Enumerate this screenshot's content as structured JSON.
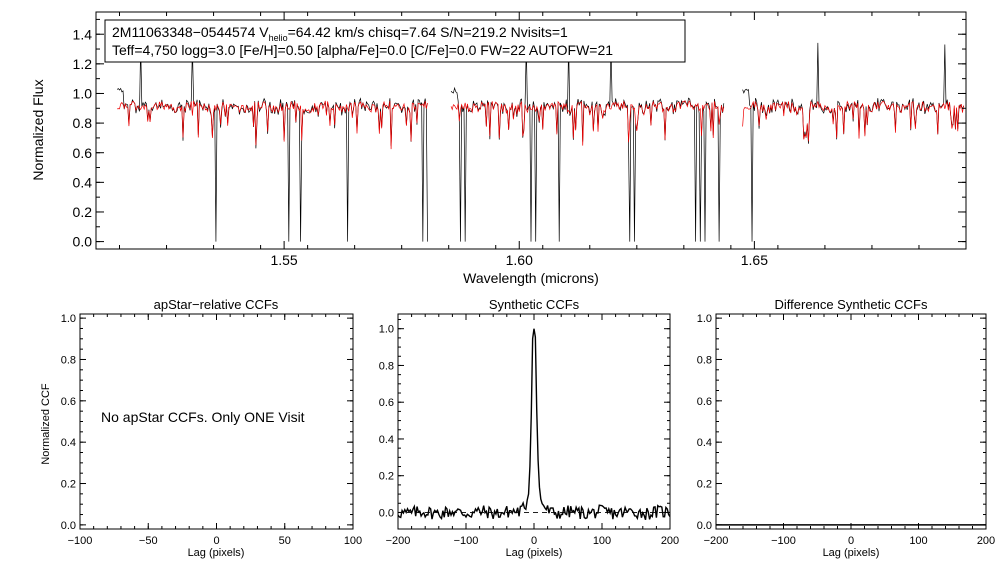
{
  "chart_data": [
    {
      "type": "line",
      "panel": "spectrum",
      "info_box": {
        "line1_prefix": "2M11063348−0544574  V",
        "line1_sub": "helio",
        "line1_suffix": "=64.42 km/s  chisq=7.64  S/N=219.2  Nvisits=1",
        "line2": "Teff=4,750 logg=3.0 [Fe/H]=0.50 [alpha/Fe]=0.0 [C/Fe]=0.0 FW=22 AUTOFW=21"
      },
      "xlabel": "Wavelength (microns)",
      "ylabel": "Normalized Flux",
      "xlim": [
        1.51,
        1.695
      ],
      "ylim": [
        -0.05,
        1.55
      ],
      "xticks": [
        1.55,
        1.6,
        1.65
      ],
      "xtick_labels": [
        "1.55",
        "1.60",
        "1.65"
      ],
      "yticks": [
        0.0,
        0.2,
        0.4,
        0.6,
        0.8,
        1.0,
        1.2,
        1.4
      ],
      "ytick_labels": [
        "0.0",
        "0.2",
        "0.4",
        "0.6",
        "0.8",
        "1.0",
        "1.2",
        "1.4"
      ],
      "chip_ranges": [
        [
          1.5145,
          1.5805
        ],
        [
          1.5855,
          1.6435
        ],
        [
          1.6475,
          1.6945
        ]
      ],
      "series": [
        {
          "name": "observed spectrum",
          "color": "#000000"
        },
        {
          "name": "best-fit model",
          "color": "#ee0000"
        }
      ],
      "spikes_down": [
        1.5125,
        1.5355,
        1.551,
        1.5535,
        1.5635,
        1.5795,
        1.5805,
        1.5875,
        1.5885,
        1.6025,
        1.6035,
        1.6085,
        1.6235,
        1.6245,
        1.6375,
        1.6385,
        1.6395,
        1.6425,
        1.6495,
        1.6905
      ],
      "spikes_up": [
        1.5195,
        1.5305,
        1.6015,
        1.6105,
        1.6195,
        1.6635,
        1.6905
      ]
    },
    {
      "type": "line",
      "panel": "apstar",
      "title": "apStar−relative CCFs",
      "xlabel": "Lag (pixels)",
      "ylabel": "Normalized CCF",
      "xlim": [
        -100,
        100
      ],
      "ylim": [
        -0.02,
        1.02
      ],
      "xticks": [
        -100,
        -50,
        0,
        50,
        100
      ],
      "xtick_labels": [
        "−100",
        "−50",
        "0",
        "50",
        "100"
      ],
      "yticks": [
        0.0,
        0.2,
        0.4,
        0.6,
        0.8,
        1.0
      ],
      "ytick_labels": [
        "0.0",
        "0.2",
        "0.4",
        "0.6",
        "0.8",
        "1.0"
      ],
      "annotation": "No apStar CCFs.  Only ONE Visit"
    },
    {
      "type": "line",
      "panel": "synthetic",
      "title": "Synthetic CCFs",
      "xlabel": "Lag (pixels)",
      "xlim": [
        -200,
        200
      ],
      "ylim": [
        -0.09,
        1.08
      ],
      "xticks": [
        -200,
        -100,
        0,
        100,
        200
      ],
      "xtick_labels": [
        "−200",
        "−100",
        "0",
        "100",
        "200"
      ],
      "yticks": [
        0.0,
        0.2,
        0.4,
        0.6,
        0.8,
        1.0
      ],
      "ytick_labels": [
        "0.0",
        "0.2",
        "0.4",
        "0.6",
        "0.8",
        "1.0"
      ],
      "peak": {
        "x": 0,
        "y": 1.0
      },
      "baseline": 0.0
    },
    {
      "type": "line",
      "panel": "difference",
      "title": "Difference Synthetic CCFs",
      "xlabel": "Lag (pixels)",
      "xlim": [
        -200,
        200
      ],
      "ylim": [
        -0.02,
        1.02
      ],
      "xticks": [
        -200,
        -100,
        0,
        100,
        200
      ],
      "xtick_labels": [
        "−200",
        "−100",
        "0",
        "100",
        "200"
      ],
      "yticks": [
        0.0,
        0.2,
        0.4,
        0.6,
        0.8,
        1.0
      ],
      "ytick_labels": [
        "0.0",
        "0.2",
        "0.4",
        "0.6",
        "0.8",
        "1.0"
      ],
      "values_constant": 0.0
    }
  ]
}
